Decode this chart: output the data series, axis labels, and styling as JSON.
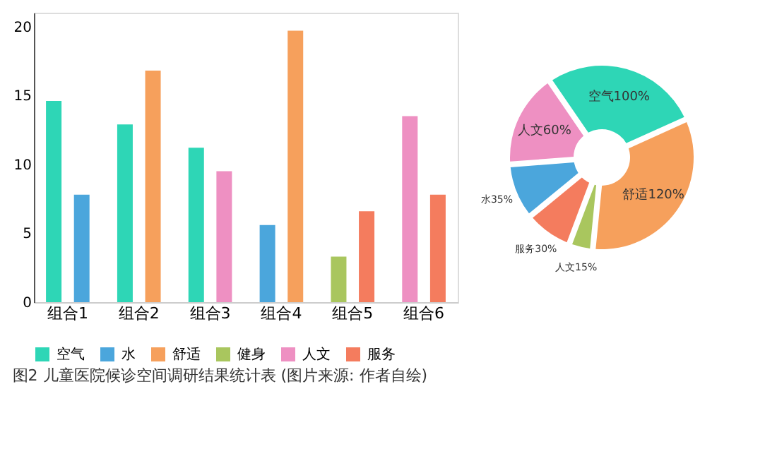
{
  "chart_data": [
    {
      "type": "bar",
      "categories": [
        "组合1",
        "组合2",
        "组合3",
        "组合4",
        "组合5",
        "组合6"
      ],
      "series": [
        {
          "name": "空气",
          "color": "#2ed6b6",
          "values": [
            14.6,
            12.9,
            11.2,
            null,
            null,
            null
          ]
        },
        {
          "name": "水",
          "color": "#4ba6dc",
          "values": [
            7.8,
            null,
            null,
            5.6,
            null,
            null
          ]
        },
        {
          "name": "舒适",
          "color": "#f6a05c",
          "values": [
            null,
            16.8,
            null,
            19.7,
            null,
            null
          ]
        },
        {
          "name": "健身",
          "color": "#a9c65e",
          "values": [
            null,
            null,
            null,
            null,
            3.3,
            null
          ]
        },
        {
          "name": "人文",
          "color": "#ee90c2",
          "values": [
            null,
            null,
            9.5,
            null,
            null,
            13.5
          ]
        },
        {
          "name": "服务",
          "color": "#f47c5e",
          "values": [
            null,
            null,
            null,
            null,
            6.6,
            7.8
          ]
        }
      ],
      "ylim": [
        0,
        21
      ],
      "yticks": [
        0,
        5,
        10,
        15,
        20
      ],
      "grid": false,
      "legend": "bottom",
      "annotations": [
        "图2 儿童医院候诊空间调研结果统计表 (图片来源: 作者自绘)"
      ]
    },
    {
      "type": "donut",
      "categories": [
        "空气",
        "舒适",
        "人文",
        "服务",
        "水",
        "人文"
      ],
      "values": [
        100,
        120,
        15,
        30,
        35,
        60
      ],
      "colors": [
        "#2ed6b6",
        "#f6a05c",
        "#a9c65e",
        "#f47c5e",
        "#4ba6dc",
        "#ee90c2"
      ],
      "value_labels": [
        "100%",
        "120%",
        "15%",
        "30%",
        "35%",
        "60%"
      ]
    }
  ]
}
